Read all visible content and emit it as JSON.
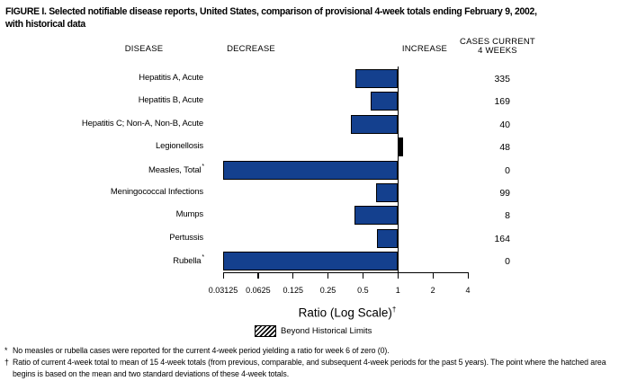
{
  "figure": {
    "title_line1": "FIGURE I. Selected notifiable disease reports, United States, comparison of provisional 4-week totals ending February 9, 2002,",
    "title_line2": "with historical data"
  },
  "columns": {
    "disease": "DISEASE",
    "decrease": "DECREASE",
    "increase": "INCREASE",
    "cases": "CASES CURRENT\n4 WEEKS"
  },
  "chart_data": {
    "type": "bar",
    "orientation": "horizontal",
    "x_scale": "log2",
    "x_range": [
      0.03125,
      4
    ],
    "baseline_ratio": 1,
    "x_ticks": [
      "0.03125",
      "0.0625",
      "0.125",
      "0.25",
      "0.5",
      "1",
      "2",
      "4"
    ],
    "x_axis_label": "Ratio (Log Scale)",
    "x_axis_label_footnote": "†",
    "bar_color": "#14408e",
    "beyond_limits_color": "#000000",
    "rows": [
      {
        "disease": "Hepatitis A, Acute",
        "footnote": "",
        "ratio": 0.43,
        "cases": "335",
        "beyond_historical_limits": false
      },
      {
        "disease": "Hepatitis B, Acute",
        "footnote": "",
        "ratio": 0.58,
        "cases": "169",
        "beyond_historical_limits": false
      },
      {
        "disease": "Hepatitis C; Non-A, Non-B, Acute",
        "footnote": "",
        "ratio": 0.39,
        "cases": "40",
        "beyond_historical_limits": false
      },
      {
        "disease": "Legionellosis",
        "footnote": "",
        "ratio": 1.1,
        "cases": "48",
        "beyond_historical_limits": true
      },
      {
        "disease": "Measles, Total",
        "footnote": "*",
        "ratio": 0,
        "cases": "0",
        "beyond_historical_limits": false
      },
      {
        "disease": "Meningococcal Infections",
        "footnote": "",
        "ratio": 0.65,
        "cases": "99",
        "beyond_historical_limits": false
      },
      {
        "disease": "Mumps",
        "footnote": "",
        "ratio": 0.42,
        "cases": "8",
        "beyond_historical_limits": false
      },
      {
        "disease": "Pertussis",
        "footnote": "",
        "ratio": 0.66,
        "cases": "164",
        "beyond_historical_limits": false
      },
      {
        "disease": "Rubella",
        "footnote": "*",
        "ratio": 0,
        "cases": "0",
        "beyond_historical_limits": false
      }
    ],
    "legend": {
      "label": "Beyond Historical Limits",
      "swatch": "hatched"
    }
  },
  "footnotes": [
    {
      "symbol": "*",
      "text": "No measles or rubella cases were reported for the current 4-week period yielding a ratio for week 6 of zero (0)."
    },
    {
      "symbol": "†",
      "text": "Ratio of current 4-week total to mean of 15 4-week totals (from previous, comparable, and subsequent 4-week periods for the past 5 years). The point where the hatched area begins is based on the mean and two standard deviations of these 4-week totals."
    }
  ]
}
